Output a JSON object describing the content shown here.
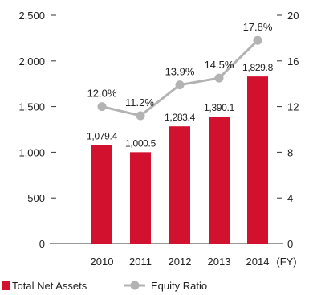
{
  "chart_data": {
    "type": "bar+line",
    "categories": [
      "2010",
      "2011",
      "2012",
      "2013",
      "2014"
    ],
    "x_unit": "(FY)",
    "y_left": {
      "ticks": [
        0,
        500,
        1000,
        1500,
        2000,
        2500
      ],
      "tick_labels": [
        "0",
        "500",
        "1,000",
        "1,500",
        "2,000",
        "2,500"
      ],
      "range": [
        0,
        2500
      ]
    },
    "y_right": {
      "ticks": [
        0,
        4,
        8,
        12,
        16,
        20
      ],
      "tick_labels": [
        "0",
        "4",
        "8",
        "12",
        "16",
        "20"
      ],
      "range": [
        0,
        20
      ]
    },
    "series": [
      {
        "name": "Total Net Assets",
        "kind": "bar",
        "axis": "left",
        "values": [
          1079.4,
          1000.5,
          1283.4,
          1390.1,
          1829.8
        ],
        "labels": [
          "1,079.4",
          "1,000.5",
          "1,283.4",
          "1,390.1",
          "1,829.8"
        ]
      },
      {
        "name": "Equity Ratio",
        "kind": "line",
        "axis": "right",
        "values": [
          12.0,
          11.2,
          13.9,
          14.5,
          17.8
        ],
        "labels": [
          "12.0%",
          "11.2%",
          "13.9%",
          "14.5%",
          "17.8%"
        ]
      }
    ],
    "colors": {
      "bar": "#d2112e",
      "line": "#b3b3b3",
      "axis": "#333333"
    },
    "legend_position": "bottom-left",
    "grid": false
  }
}
